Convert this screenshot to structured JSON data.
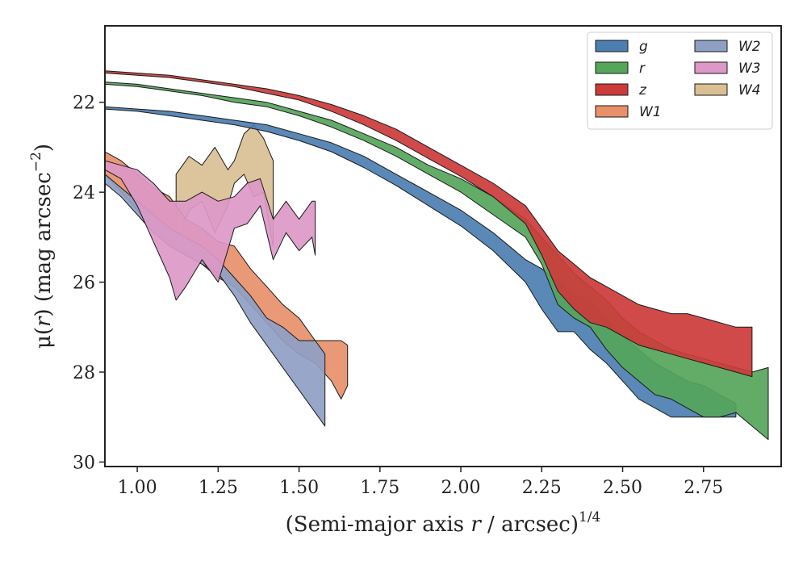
{
  "chart_data": {
    "type": "area",
    "xlabel_prefix": "(Semi-major axis ",
    "xlabel_var": "r",
    "xlabel_suffix": " / arcsec)",
    "xlabel_sup": "1/4",
    "ylabel_prefix": "μ(",
    "ylabel_var": "r",
    "ylabel_suffix": ") (mag arcsec",
    "ylabel_sup": "−2",
    "ylabel_close": ")",
    "xlim": [
      0.9,
      2.99
    ],
    "ylim": [
      30.1,
      20.3
    ],
    "y_inverted": true,
    "xticks": [
      1.0,
      1.25,
      1.5,
      1.75,
      2.0,
      2.25,
      2.5,
      2.75
    ],
    "xtick_labels": [
      "1.00",
      "1.25",
      "1.50",
      "1.75",
      "2.00",
      "2.25",
      "2.50",
      "2.75"
    ],
    "yticks": [
      22,
      24,
      26,
      28,
      30
    ],
    "ytick_labels": [
      "22",
      "24",
      "26",
      "28",
      "30"
    ],
    "legend": {
      "placement": "top-right",
      "columns": 2
    },
    "series": [
      {
        "name": "W4",
        "color": "#d9bf94",
        "upper": [
          [
            1.12,
            23.6
          ],
          [
            1.16,
            23.2
          ],
          [
            1.2,
            23.4
          ],
          [
            1.24,
            23.0
          ],
          [
            1.28,
            23.5
          ],
          [
            1.3,
            23.3
          ],
          [
            1.33,
            22.7
          ],
          [
            1.36,
            22.5
          ],
          [
            1.39,
            22.8
          ],
          [
            1.42,
            23.3
          ]
        ],
        "lower": [
          [
            1.12,
            25.2
          ],
          [
            1.16,
            24.4
          ],
          [
            1.2,
            24.2
          ],
          [
            1.24,
            24.9
          ],
          [
            1.28,
            24.3
          ],
          [
            1.3,
            23.8
          ],
          [
            1.33,
            23.6
          ],
          [
            1.36,
            24.1
          ],
          [
            1.39,
            24.0
          ],
          [
            1.42,
            25.2
          ]
        ]
      },
      {
        "name": "W1",
        "color": "#e8906a",
        "upper": [
          [
            0.9,
            23.1
          ],
          [
            0.95,
            23.3
          ],
          [
            1.0,
            23.6
          ],
          [
            1.05,
            23.9
          ],
          [
            1.1,
            24.1
          ],
          [
            1.15,
            24.6
          ],
          [
            1.2,
            24.8
          ],
          [
            1.25,
            25.1
          ],
          [
            1.3,
            25.2
          ],
          [
            1.35,
            25.7
          ],
          [
            1.4,
            26.1
          ],
          [
            1.45,
            26.5
          ],
          [
            1.5,
            26.8
          ],
          [
            1.55,
            27.3
          ],
          [
            1.6,
            27.3
          ],
          [
            1.63,
            27.3
          ],
          [
            1.65,
            27.4
          ]
        ],
        "lower": [
          [
            0.9,
            23.6
          ],
          [
            0.95,
            24.0
          ],
          [
            1.0,
            24.4
          ],
          [
            1.05,
            24.8
          ],
          [
            1.1,
            25.1
          ],
          [
            1.15,
            25.4
          ],
          [
            1.2,
            25.6
          ],
          [
            1.25,
            25.9
          ],
          [
            1.3,
            26.1
          ],
          [
            1.35,
            26.5
          ],
          [
            1.4,
            26.9
          ],
          [
            1.45,
            27.3
          ],
          [
            1.5,
            27.6
          ],
          [
            1.55,
            27.8
          ],
          [
            1.6,
            28.2
          ],
          [
            1.63,
            28.6
          ],
          [
            1.65,
            28.3
          ]
        ]
      },
      {
        "name": "W2",
        "color": "#8f9fc4",
        "upper": [
          [
            0.9,
            23.6
          ],
          [
            0.95,
            23.9
          ],
          [
            1.0,
            24.2
          ],
          [
            1.05,
            24.5
          ],
          [
            1.1,
            24.8
          ],
          [
            1.15,
            25.0
          ],
          [
            1.2,
            25.2
          ],
          [
            1.25,
            25.5
          ],
          [
            1.3,
            25.9
          ],
          [
            1.35,
            26.3
          ],
          [
            1.4,
            26.8
          ],
          [
            1.45,
            27.0
          ],
          [
            1.5,
            27.3
          ],
          [
            1.55,
            27.3
          ],
          [
            1.58,
            27.6
          ]
        ],
        "lower": [
          [
            0.9,
            23.8
          ],
          [
            0.95,
            24.1
          ],
          [
            1.0,
            24.5
          ],
          [
            1.05,
            24.9
          ],
          [
            1.1,
            25.2
          ],
          [
            1.15,
            25.4
          ],
          [
            1.2,
            25.6
          ],
          [
            1.25,
            25.8
          ],
          [
            1.3,
            26.3
          ],
          [
            1.35,
            26.9
          ],
          [
            1.4,
            27.4
          ],
          [
            1.45,
            27.9
          ],
          [
            1.5,
            28.4
          ],
          [
            1.55,
            28.9
          ],
          [
            1.58,
            29.2
          ]
        ]
      },
      {
        "name": "W3",
        "color": "#dc98c7",
        "upper": [
          [
            0.9,
            23.3
          ],
          [
            0.95,
            23.4
          ],
          [
            1.0,
            23.5
          ],
          [
            1.05,
            23.8
          ],
          [
            1.1,
            24.2
          ],
          [
            1.15,
            24.2
          ],
          [
            1.2,
            24.0
          ],
          [
            1.25,
            24.2
          ],
          [
            1.3,
            24.1
          ],
          [
            1.34,
            23.8
          ],
          [
            1.38,
            23.7
          ],
          [
            1.42,
            24.6
          ],
          [
            1.46,
            24.2
          ],
          [
            1.5,
            24.6
          ],
          [
            1.54,
            24.2
          ],
          [
            1.55,
            24.2
          ]
        ],
        "lower": [
          [
            0.9,
            23.5
          ],
          [
            0.95,
            23.7
          ],
          [
            1.0,
            24.3
          ],
          [
            1.05,
            25.1
          ],
          [
            1.1,
            25.9
          ],
          [
            1.12,
            26.4
          ],
          [
            1.15,
            26.1
          ],
          [
            1.2,
            25.5
          ],
          [
            1.25,
            26.0
          ],
          [
            1.3,
            24.8
          ],
          [
            1.34,
            24.7
          ],
          [
            1.38,
            24.3
          ],
          [
            1.42,
            25.5
          ],
          [
            1.46,
            24.9
          ],
          [
            1.5,
            25.3
          ],
          [
            1.54,
            25.0
          ],
          [
            1.55,
            25.4
          ]
        ]
      },
      {
        "name": "g",
        "color": "#4c7eb1",
        "upper": [
          [
            0.9,
            22.1
          ],
          [
            1.0,
            22.15
          ],
          [
            1.1,
            22.2
          ],
          [
            1.2,
            22.3
          ],
          [
            1.3,
            22.4
          ],
          [
            1.4,
            22.5
          ],
          [
            1.5,
            22.7
          ],
          [
            1.6,
            22.9
          ],
          [
            1.7,
            23.2
          ],
          [
            1.8,
            23.6
          ],
          [
            1.9,
            24.0
          ],
          [
            2.0,
            24.4
          ],
          [
            2.1,
            24.9
          ],
          [
            2.2,
            25.5
          ],
          [
            2.25,
            25.7
          ],
          [
            2.3,
            26.0
          ],
          [
            2.35,
            26.3
          ],
          [
            2.4,
            26.4
          ],
          [
            2.45,
            26.8
          ],
          [
            2.5,
            27.2
          ],
          [
            2.55,
            27.5
          ],
          [
            2.6,
            27.8
          ],
          [
            2.65,
            28.0
          ],
          [
            2.7,
            28.2
          ],
          [
            2.75,
            28.3
          ],
          [
            2.8,
            28.5
          ],
          [
            2.85,
            28.7
          ]
        ],
        "lower": [
          [
            0.9,
            22.15
          ],
          [
            1.0,
            22.2
          ],
          [
            1.1,
            22.3
          ],
          [
            1.2,
            22.4
          ],
          [
            1.3,
            22.5
          ],
          [
            1.4,
            22.65
          ],
          [
            1.5,
            22.85
          ],
          [
            1.6,
            23.1
          ],
          [
            1.7,
            23.45
          ],
          [
            1.8,
            23.85
          ],
          [
            1.9,
            24.3
          ],
          [
            2.0,
            24.75
          ],
          [
            2.1,
            25.3
          ],
          [
            2.2,
            26.0
          ],
          [
            2.25,
            26.6
          ],
          [
            2.3,
            27.1
          ],
          [
            2.35,
            27.1
          ],
          [
            2.4,
            27.5
          ],
          [
            2.45,
            27.8
          ],
          [
            2.5,
            28.2
          ],
          [
            2.55,
            28.6
          ],
          [
            2.6,
            28.8
          ],
          [
            2.65,
            29.0
          ],
          [
            2.7,
            29.0
          ],
          [
            2.75,
            29.0
          ],
          [
            2.8,
            29.0
          ],
          [
            2.85,
            29.0
          ]
        ]
      },
      {
        "name": "r",
        "color": "#55a55a",
        "upper": [
          [
            0.9,
            21.55
          ],
          [
            1.0,
            21.6
          ],
          [
            1.1,
            21.7
          ],
          [
            1.2,
            21.8
          ],
          [
            1.3,
            21.9
          ],
          [
            1.4,
            22.0
          ],
          [
            1.5,
            22.2
          ],
          [
            1.6,
            22.4
          ],
          [
            1.7,
            22.7
          ],
          [
            1.8,
            23.0
          ],
          [
            1.9,
            23.4
          ],
          [
            2.0,
            23.7
          ],
          [
            2.1,
            24.1
          ],
          [
            2.2,
            24.6
          ],
          [
            2.25,
            25.0
          ],
          [
            2.3,
            25.4
          ],
          [
            2.35,
            25.8
          ],
          [
            2.4,
            26.1
          ],
          [
            2.45,
            26.4
          ],
          [
            2.5,
            26.8
          ],
          [
            2.55,
            27.1
          ],
          [
            2.6,
            27.3
          ],
          [
            2.65,
            27.5
          ],
          [
            2.7,
            27.6
          ],
          [
            2.75,
            27.7
          ],
          [
            2.8,
            27.8
          ],
          [
            2.85,
            27.9
          ],
          [
            2.9,
            28.0
          ],
          [
            2.95,
            27.9
          ]
        ],
        "lower": [
          [
            0.9,
            21.6
          ],
          [
            1.0,
            21.65
          ],
          [
            1.1,
            21.75
          ],
          [
            1.2,
            21.85
          ],
          [
            1.3,
            22.0
          ],
          [
            1.4,
            22.1
          ],
          [
            1.5,
            22.3
          ],
          [
            1.6,
            22.55
          ],
          [
            1.7,
            22.85
          ],
          [
            1.8,
            23.2
          ],
          [
            1.9,
            23.6
          ],
          [
            2.0,
            24.0
          ],
          [
            2.1,
            24.5
          ],
          [
            2.2,
            25.0
          ],
          [
            2.25,
            25.6
          ],
          [
            2.3,
            26.5
          ],
          [
            2.35,
            26.8
          ],
          [
            2.4,
            27.0
          ],
          [
            2.45,
            27.5
          ],
          [
            2.5,
            27.9
          ],
          [
            2.55,
            28.2
          ],
          [
            2.6,
            28.5
          ],
          [
            2.65,
            28.6
          ],
          [
            2.7,
            28.8
          ],
          [
            2.75,
            29.0
          ],
          [
            2.8,
            29.0
          ],
          [
            2.85,
            28.9
          ],
          [
            2.9,
            29.2
          ],
          [
            2.95,
            29.5
          ]
        ]
      },
      {
        "name": "z",
        "color": "#cc3b3b",
        "upper": [
          [
            0.9,
            21.3
          ],
          [
            1.0,
            21.35
          ],
          [
            1.1,
            21.4
          ],
          [
            1.2,
            21.5
          ],
          [
            1.3,
            21.6
          ],
          [
            1.4,
            21.7
          ],
          [
            1.5,
            21.85
          ],
          [
            1.6,
            22.05
          ],
          [
            1.7,
            22.3
          ],
          [
            1.8,
            22.6
          ],
          [
            1.9,
            23.0
          ],
          [
            2.0,
            23.4
          ],
          [
            2.1,
            23.8
          ],
          [
            2.2,
            24.3
          ],
          [
            2.25,
            24.8
          ],
          [
            2.3,
            25.3
          ],
          [
            2.35,
            25.6
          ],
          [
            2.4,
            25.9
          ],
          [
            2.45,
            26.1
          ],
          [
            2.5,
            26.3
          ],
          [
            2.55,
            26.5
          ],
          [
            2.6,
            26.6
          ],
          [
            2.65,
            26.7
          ],
          [
            2.7,
            26.7
          ],
          [
            2.75,
            26.8
          ],
          [
            2.8,
            26.9
          ],
          [
            2.85,
            27.0
          ],
          [
            2.9,
            27.0
          ]
        ],
        "lower": [
          [
            0.9,
            21.35
          ],
          [
            1.0,
            21.4
          ],
          [
            1.1,
            21.45
          ],
          [
            1.2,
            21.55
          ],
          [
            1.3,
            21.65
          ],
          [
            1.4,
            21.8
          ],
          [
            1.5,
            21.95
          ],
          [
            1.6,
            22.2
          ],
          [
            1.7,
            22.5
          ],
          [
            1.8,
            22.85
          ],
          [
            1.9,
            23.25
          ],
          [
            2.0,
            23.65
          ],
          [
            2.1,
            24.1
          ],
          [
            2.2,
            24.7
          ],
          [
            2.25,
            25.4
          ],
          [
            2.3,
            26.2
          ],
          [
            2.35,
            26.6
          ],
          [
            2.4,
            26.9
          ],
          [
            2.45,
            27.0
          ],
          [
            2.5,
            27.2
          ],
          [
            2.55,
            27.4
          ],
          [
            2.6,
            27.5
          ],
          [
            2.65,
            27.6
          ],
          [
            2.7,
            27.7
          ],
          [
            2.75,
            27.8
          ],
          [
            2.8,
            27.9
          ],
          [
            2.85,
            28.0
          ],
          [
            2.9,
            28.1
          ]
        ]
      }
    ],
    "legend_entries": [
      {
        "name": "g",
        "color": "#4c7eb1"
      },
      {
        "name": "r",
        "color": "#55a55a"
      },
      {
        "name": "z",
        "color": "#cc3b3b"
      },
      {
        "name": "W1",
        "color": "#e8906a"
      },
      {
        "name": "W2",
        "color": "#8f9fc4"
      },
      {
        "name": "W3",
        "color": "#dc98c7"
      },
      {
        "name": "W4",
        "color": "#d9bf94"
      }
    ]
  }
}
